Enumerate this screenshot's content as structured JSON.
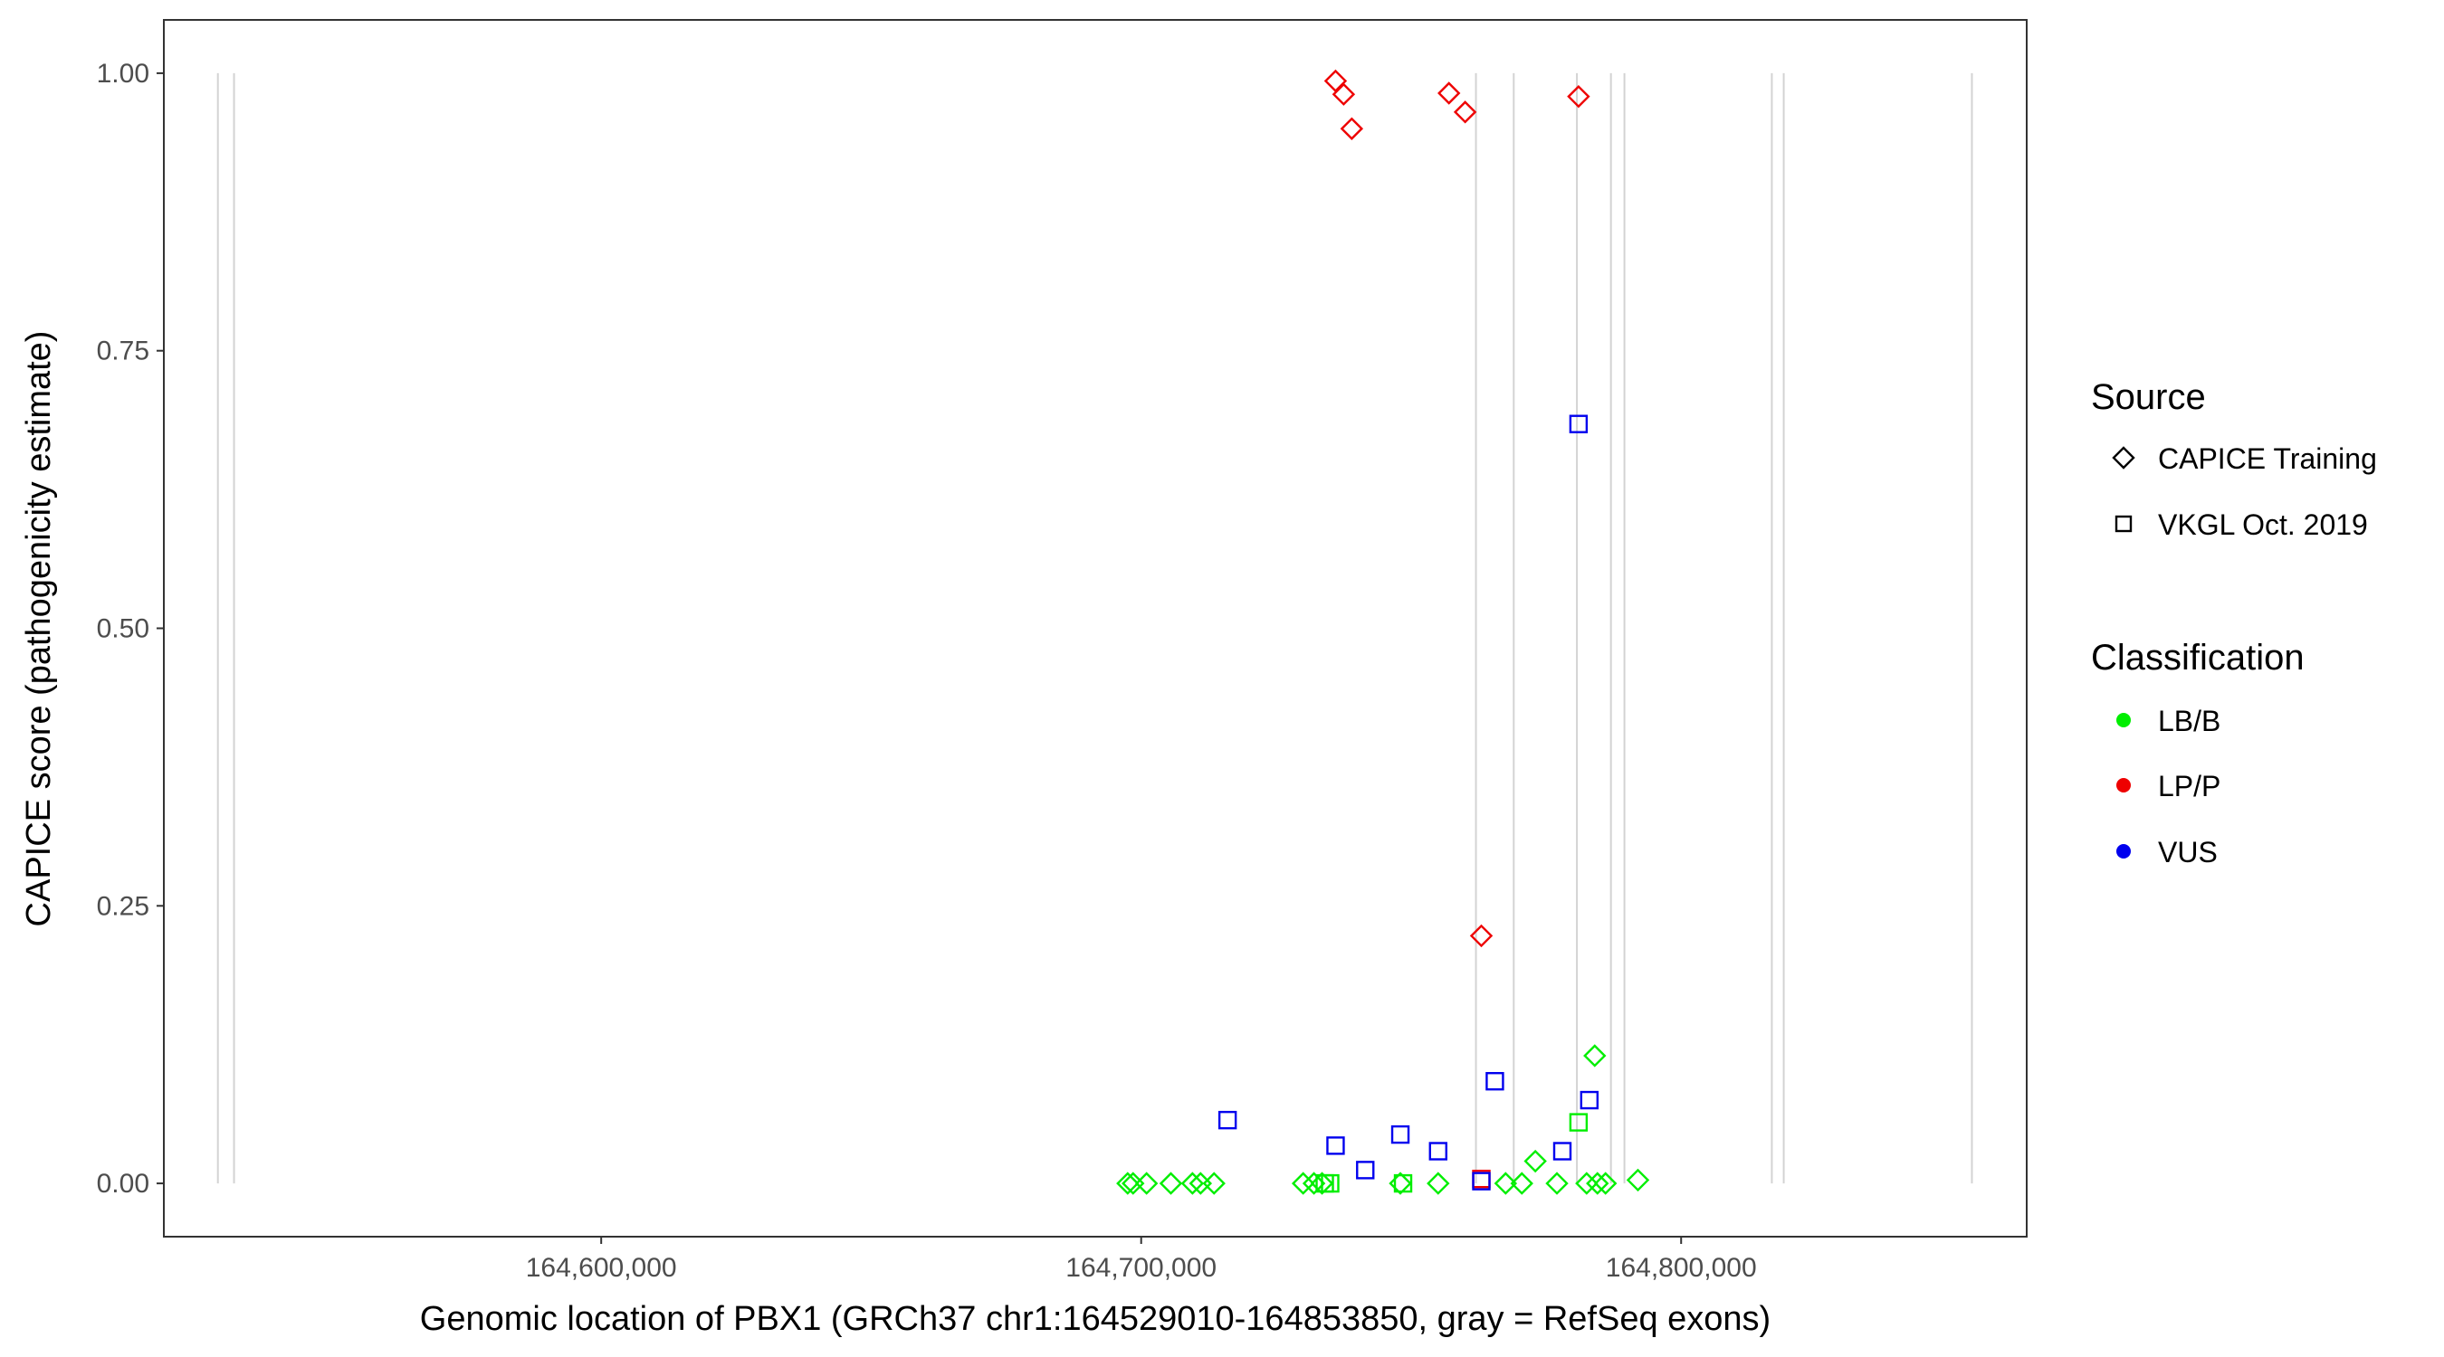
{
  "chart_data": {
    "type": "scatter",
    "xlabel": "Genomic location of PBX1 (GRCh37 chr1:164529010-164853850, gray = RefSeq exons)",
    "ylabel": "CAPICE score (pathogenicity estimate)",
    "xlim": [
      164519000,
      164864000
    ],
    "ylim": [
      -0.048,
      1.048
    ],
    "x_ticks": [
      164600000,
      164700000,
      164800000
    ],
    "x_tick_labels": [
      "164,600,000",
      "164,700,000",
      "164,800,000"
    ],
    "y_ticks": [
      0,
      0.25,
      0.5,
      0.75,
      1.0
    ],
    "y_tick_labels": [
      "0.00",
      "0.25",
      "0.50",
      "0.75",
      "1.00"
    ],
    "grid": false,
    "exon_lines_color": "#d3d3d3",
    "exon_positions": [
      164529010,
      164532000,
      164762000,
      164769000,
      164780700,
      164787000,
      164789500,
      164816800,
      164819000,
      164853850
    ],
    "legend": {
      "placement": "right",
      "source": {
        "title": "Source",
        "entries": [
          {
            "label": "CAPICE Training",
            "shape": "diamond"
          },
          {
            "label": "VKGL Oct. 2019",
            "shape": "square"
          }
        ]
      },
      "classification": {
        "title": "Classification",
        "entries": [
          {
            "label": "LB/B",
            "color": "#00ee00"
          },
          {
            "label": "LP/P",
            "color": "#ee0000"
          },
          {
            "label": "VUS",
            "color": "#0000ee"
          }
        ]
      }
    },
    "series": [
      {
        "name": "LB/B",
        "color": "#00ee00",
        "points": [
          {
            "x": 164697500,
            "y": 0.0,
            "shape": "diamond"
          },
          {
            "x": 164698500,
            "y": 0.0,
            "shape": "diamond"
          },
          {
            "x": 164701000,
            "y": 0.0,
            "shape": "diamond"
          },
          {
            "x": 164705500,
            "y": 0.0,
            "shape": "diamond"
          },
          {
            "x": 164709500,
            "y": 0.0,
            "shape": "diamond"
          },
          {
            "x": 164711000,
            "y": 0.0,
            "shape": "diamond"
          },
          {
            "x": 164713500,
            "y": 0.0,
            "shape": "diamond"
          },
          {
            "x": 164730000,
            "y": 0.0,
            "shape": "diamond"
          },
          {
            "x": 164732000,
            "y": 0.0,
            "shape": "diamond"
          },
          {
            "x": 164733500,
            "y": 0.0,
            "shape": "diamond"
          },
          {
            "x": 164734000,
            "y": 0.0,
            "shape": "square"
          },
          {
            "x": 164735000,
            "y": 0.0,
            "shape": "square"
          },
          {
            "x": 164748000,
            "y": 0.0,
            "shape": "diamond"
          },
          {
            "x": 164748500,
            "y": 0.0,
            "shape": "square"
          },
          {
            "x": 164755000,
            "y": 0.0,
            "shape": "diamond"
          },
          {
            "x": 164767500,
            "y": 0.0,
            "shape": "diamond"
          },
          {
            "x": 164770500,
            "y": 0.0,
            "shape": "diamond"
          },
          {
            "x": 164773000,
            "y": 0.02,
            "shape": "diamond"
          },
          {
            "x": 164777000,
            "y": 0.0,
            "shape": "diamond"
          },
          {
            "x": 164781000,
            "y": 0.055,
            "shape": "square"
          },
          {
            "x": 164782500,
            "y": 0.0,
            "shape": "diamond"
          },
          {
            "x": 164784000,
            "y": 0.115,
            "shape": "diamond"
          },
          {
            "x": 164784500,
            "y": 0.0,
            "shape": "diamond"
          },
          {
            "x": 164786000,
            "y": 0.0,
            "shape": "diamond"
          },
          {
            "x": 164792000,
            "y": 0.003,
            "shape": "diamond"
          }
        ]
      },
      {
        "name": "LP/P",
        "color": "#ee0000",
        "points": [
          {
            "x": 164736000,
            "y": 0.993,
            "shape": "diamond"
          },
          {
            "x": 164737500,
            "y": 0.981,
            "shape": "diamond"
          },
          {
            "x": 164739000,
            "y": 0.95,
            "shape": "diamond"
          },
          {
            "x": 164757000,
            "y": 0.982,
            "shape": "diamond"
          },
          {
            "x": 164760000,
            "y": 0.965,
            "shape": "diamond"
          },
          {
            "x": 164763000,
            "y": 0.223,
            "shape": "diamond"
          },
          {
            "x": 164763000,
            "y": 0.004,
            "shape": "square"
          },
          {
            "x": 164781000,
            "y": 0.979,
            "shape": "diamond"
          }
        ]
      },
      {
        "name": "VUS",
        "color": "#0000ee",
        "points": [
          {
            "x": 164716000,
            "y": 0.057,
            "shape": "square"
          },
          {
            "x": 164736000,
            "y": 0.034,
            "shape": "square"
          },
          {
            "x": 164741500,
            "y": 0.012,
            "shape": "square"
          },
          {
            "x": 164748000,
            "y": 0.044,
            "shape": "square"
          },
          {
            "x": 164755000,
            "y": 0.029,
            "shape": "square"
          },
          {
            "x": 164763000,
            "y": 0.002,
            "shape": "square"
          },
          {
            "x": 164765500,
            "y": 0.092,
            "shape": "square"
          },
          {
            "x": 164778000,
            "y": 0.029,
            "shape": "square"
          },
          {
            "x": 164781000,
            "y": 0.684,
            "shape": "square"
          },
          {
            "x": 164783000,
            "y": 0.075,
            "shape": "square"
          }
        ]
      }
    ]
  }
}
